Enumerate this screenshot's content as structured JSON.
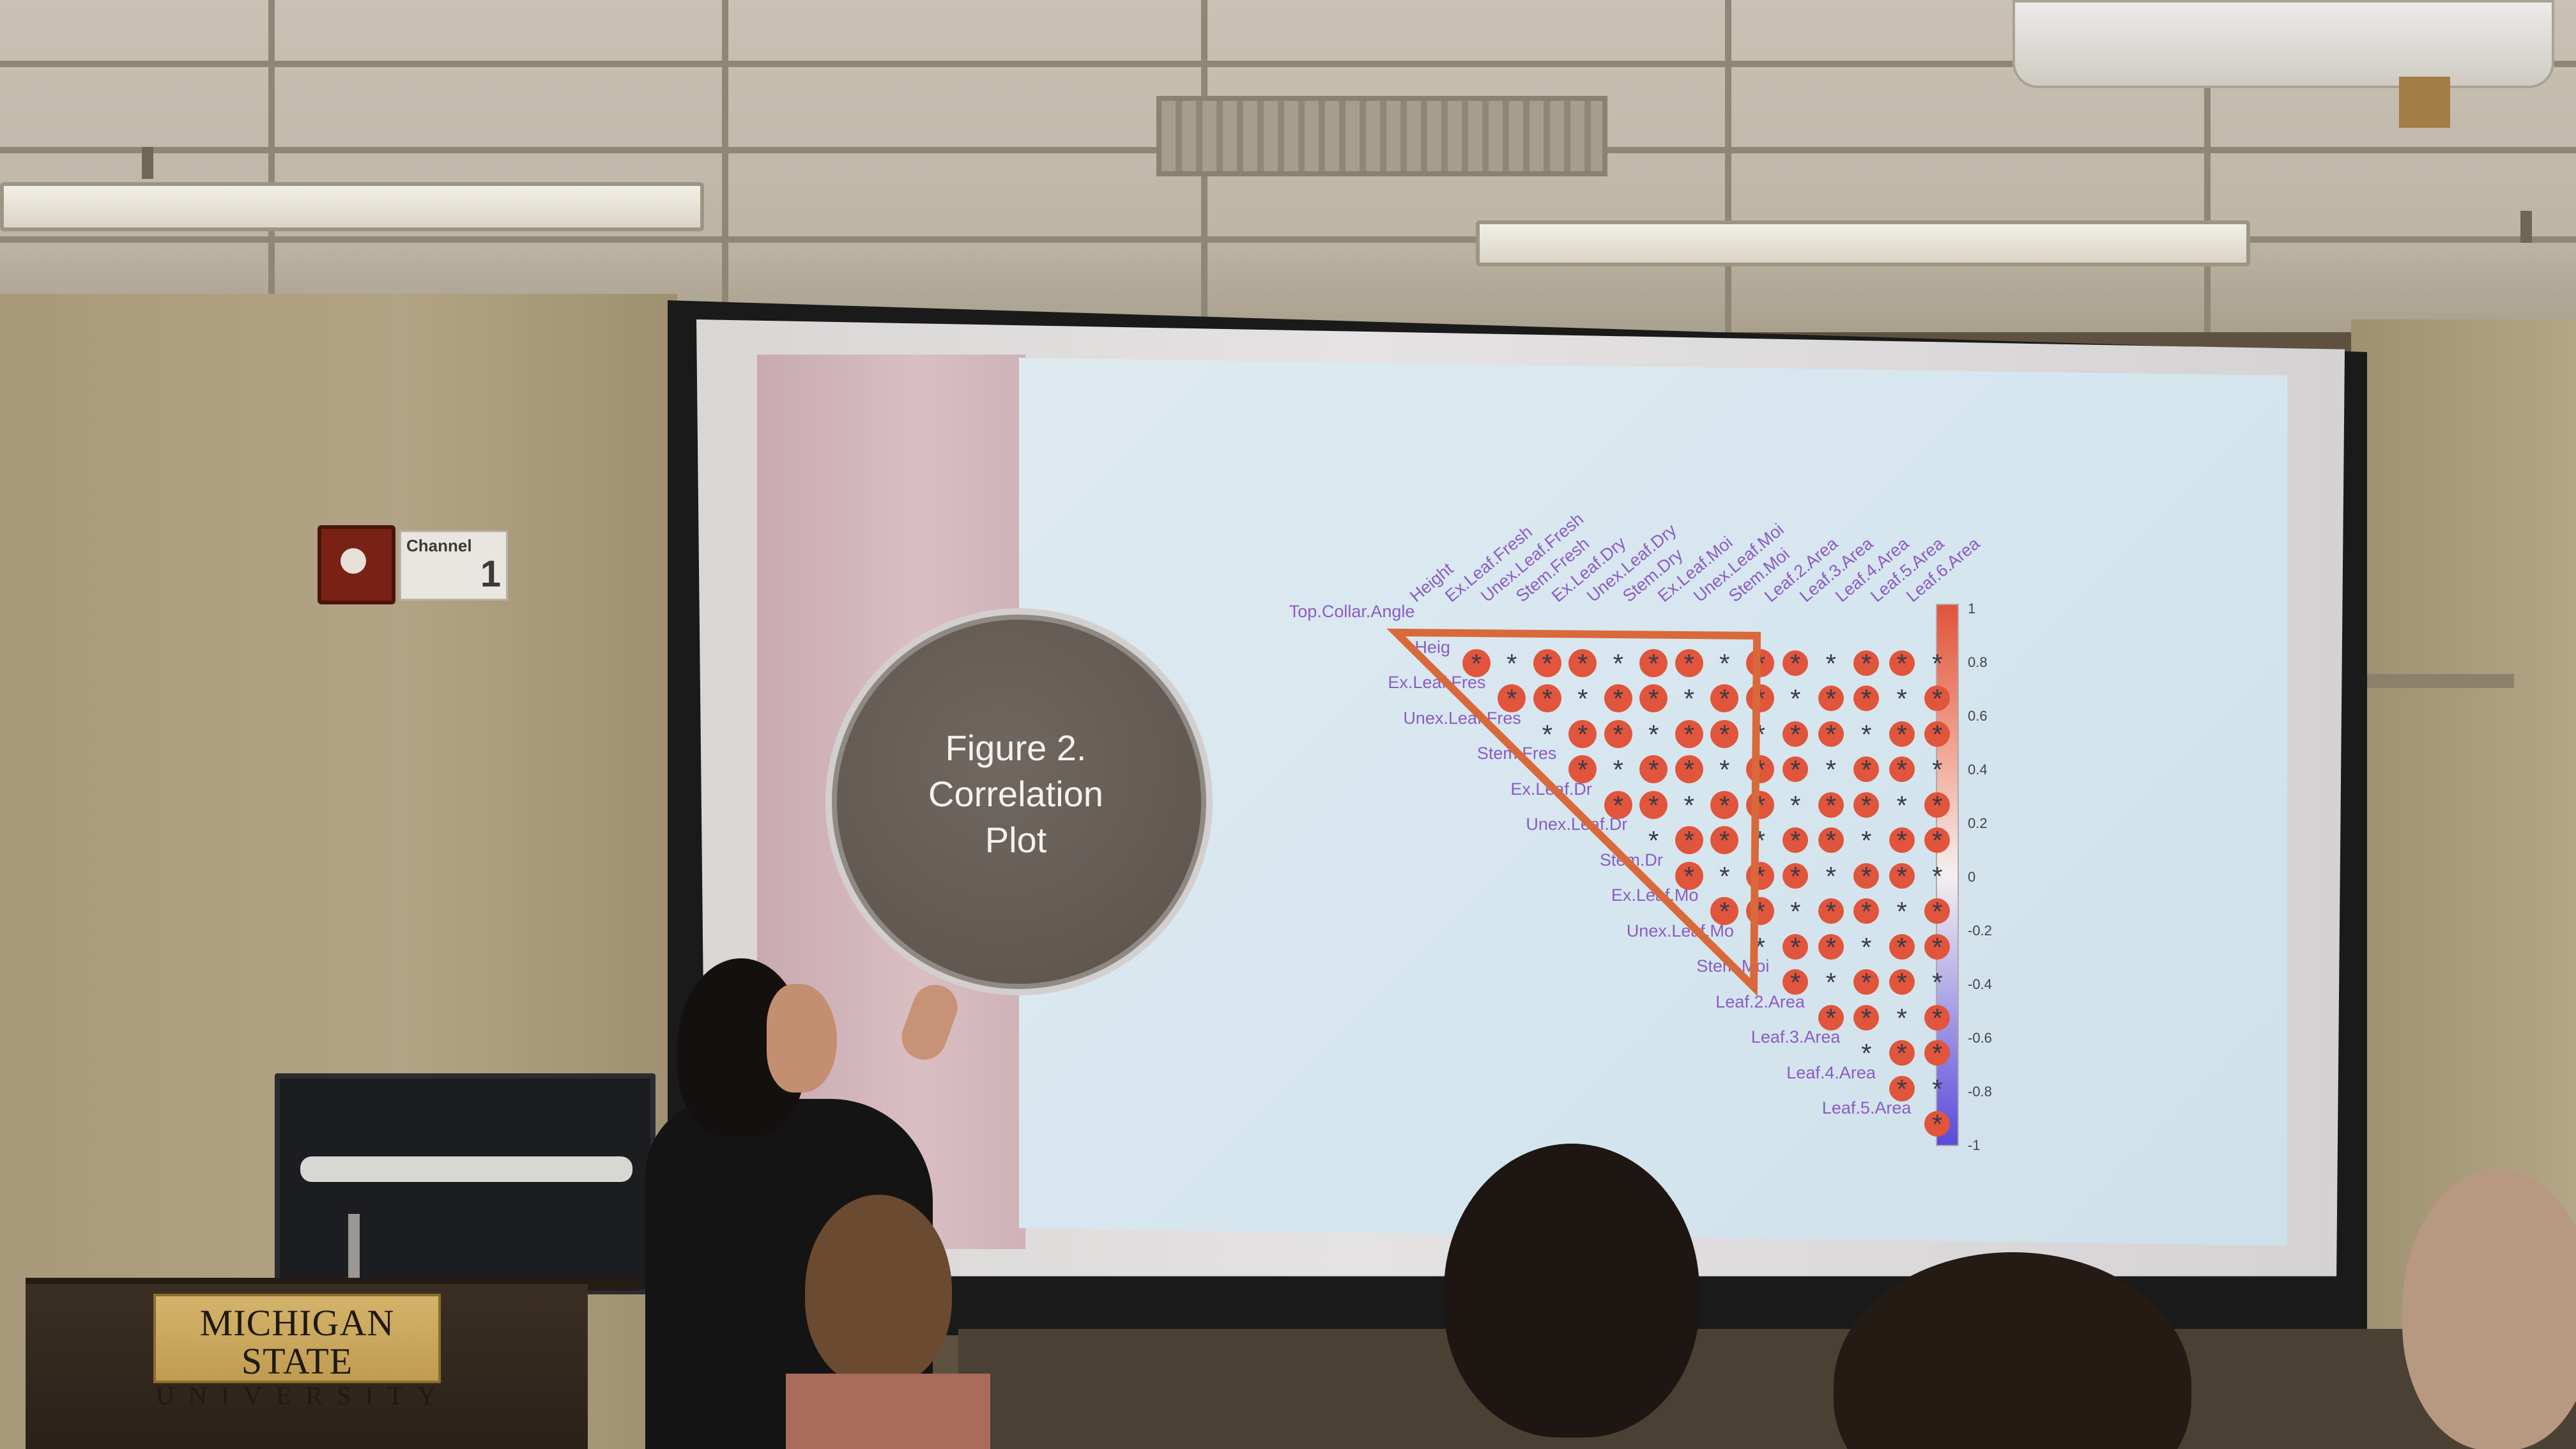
{
  "slide": {
    "figure_title": "Figure 2.\nCorrelation\nPlot"
  },
  "plot": {
    "column_labels": [
      "Height",
      "Ex.Leaf.Fresh",
      "Unex.Leaf.Fresh",
      "Stem.Fresh",
      "Ex.Leaf.Dry",
      "Unex.Leaf.Dry",
      "Stem.Dry",
      "Ex.Leaf.Moi",
      "Unex.Leaf.Moi",
      "Stem.Moi",
      "Leaf.2.Area",
      "Leaf.3.Area",
      "Leaf.4.Area",
      "Leaf.5.Area",
      "Leaf.6.Area"
    ],
    "row_labels": [
      "Top.Collar.Angle",
      "Heig",
      "Ex.Leaf.Fres",
      "Unex.Leaf.Fres",
      "Stem.Fres",
      "Ex.Leaf.Dr",
      "Unex.Leaf.Dr",
      "Stem.Dr",
      "Ex.Leaf.Mo",
      "Unex.Leaf.Mo",
      "Stem.Moi",
      "Leaf.2.Area",
      "Leaf.3.Area",
      "Leaf.4.Area",
      "Leaf.5.Area"
    ],
    "colorbar_ticks": [
      "1",
      "0.8",
      "0.6",
      "0.4",
      "0.2",
      "0",
      "-0.2",
      "-0.4",
      "-0.6",
      "-0.8",
      "-1"
    ],
    "colors": {
      "positive": "#e0553b",
      "negative": "#5a4adb",
      "neutral": "#f4f0f0",
      "highlight": "#d9693a",
      "label": "#8a5cc4"
    }
  },
  "room": {
    "sign_text": "Channel",
    "sign_number": "1",
    "plaque_line1": "MICHIGAN STATE",
    "plaque_line2": "UNIVERSITY"
  }
}
